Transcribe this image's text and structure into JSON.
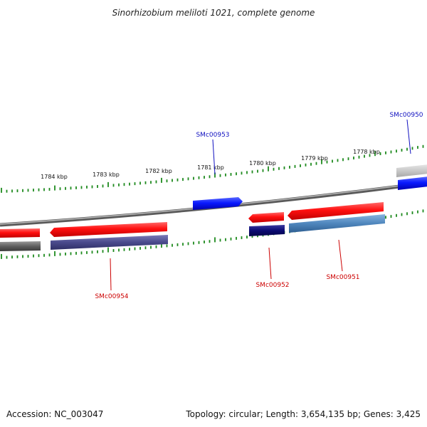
{
  "title": "Sinorhizobium meliloti 1021, complete genome",
  "footer": {
    "accession": "Accession: NC_003047",
    "summary": "Topology: circular; Length: 3,654,135 bp; Genes: 3,425"
  },
  "scale_labels": [
    "1784 kbp",
    "1783 kbp",
    "1782 kbp",
    "1781 kbp",
    "1780 kbp",
    "1779 kbp",
    "1778 kbp"
  ],
  "gene_labels": [
    {
      "name": "SMc00950",
      "color": "#1010c0"
    },
    {
      "name": "SMc00953",
      "color": "#1010c0"
    },
    {
      "name": "SMc00954",
      "color": "#cc0000"
    },
    {
      "name": "SMc00952",
      "color": "#cc0000"
    },
    {
      "name": "SMc00951",
      "color": "#cc0000"
    }
  ],
  "colors": {
    "backbone": "#8a8a8a",
    "tick": "#1f8a1f",
    "forward_cds": "#0a1aff",
    "reverse_cds": "#ff1010",
    "cog_dark_grey": "#5f5f5f",
    "cog_light_grey": "#c8c8c8",
    "cog_slate": "#4a4a8c",
    "cog_navy": "#0a0a72",
    "cog_steel": "#4f86bd"
  }
}
